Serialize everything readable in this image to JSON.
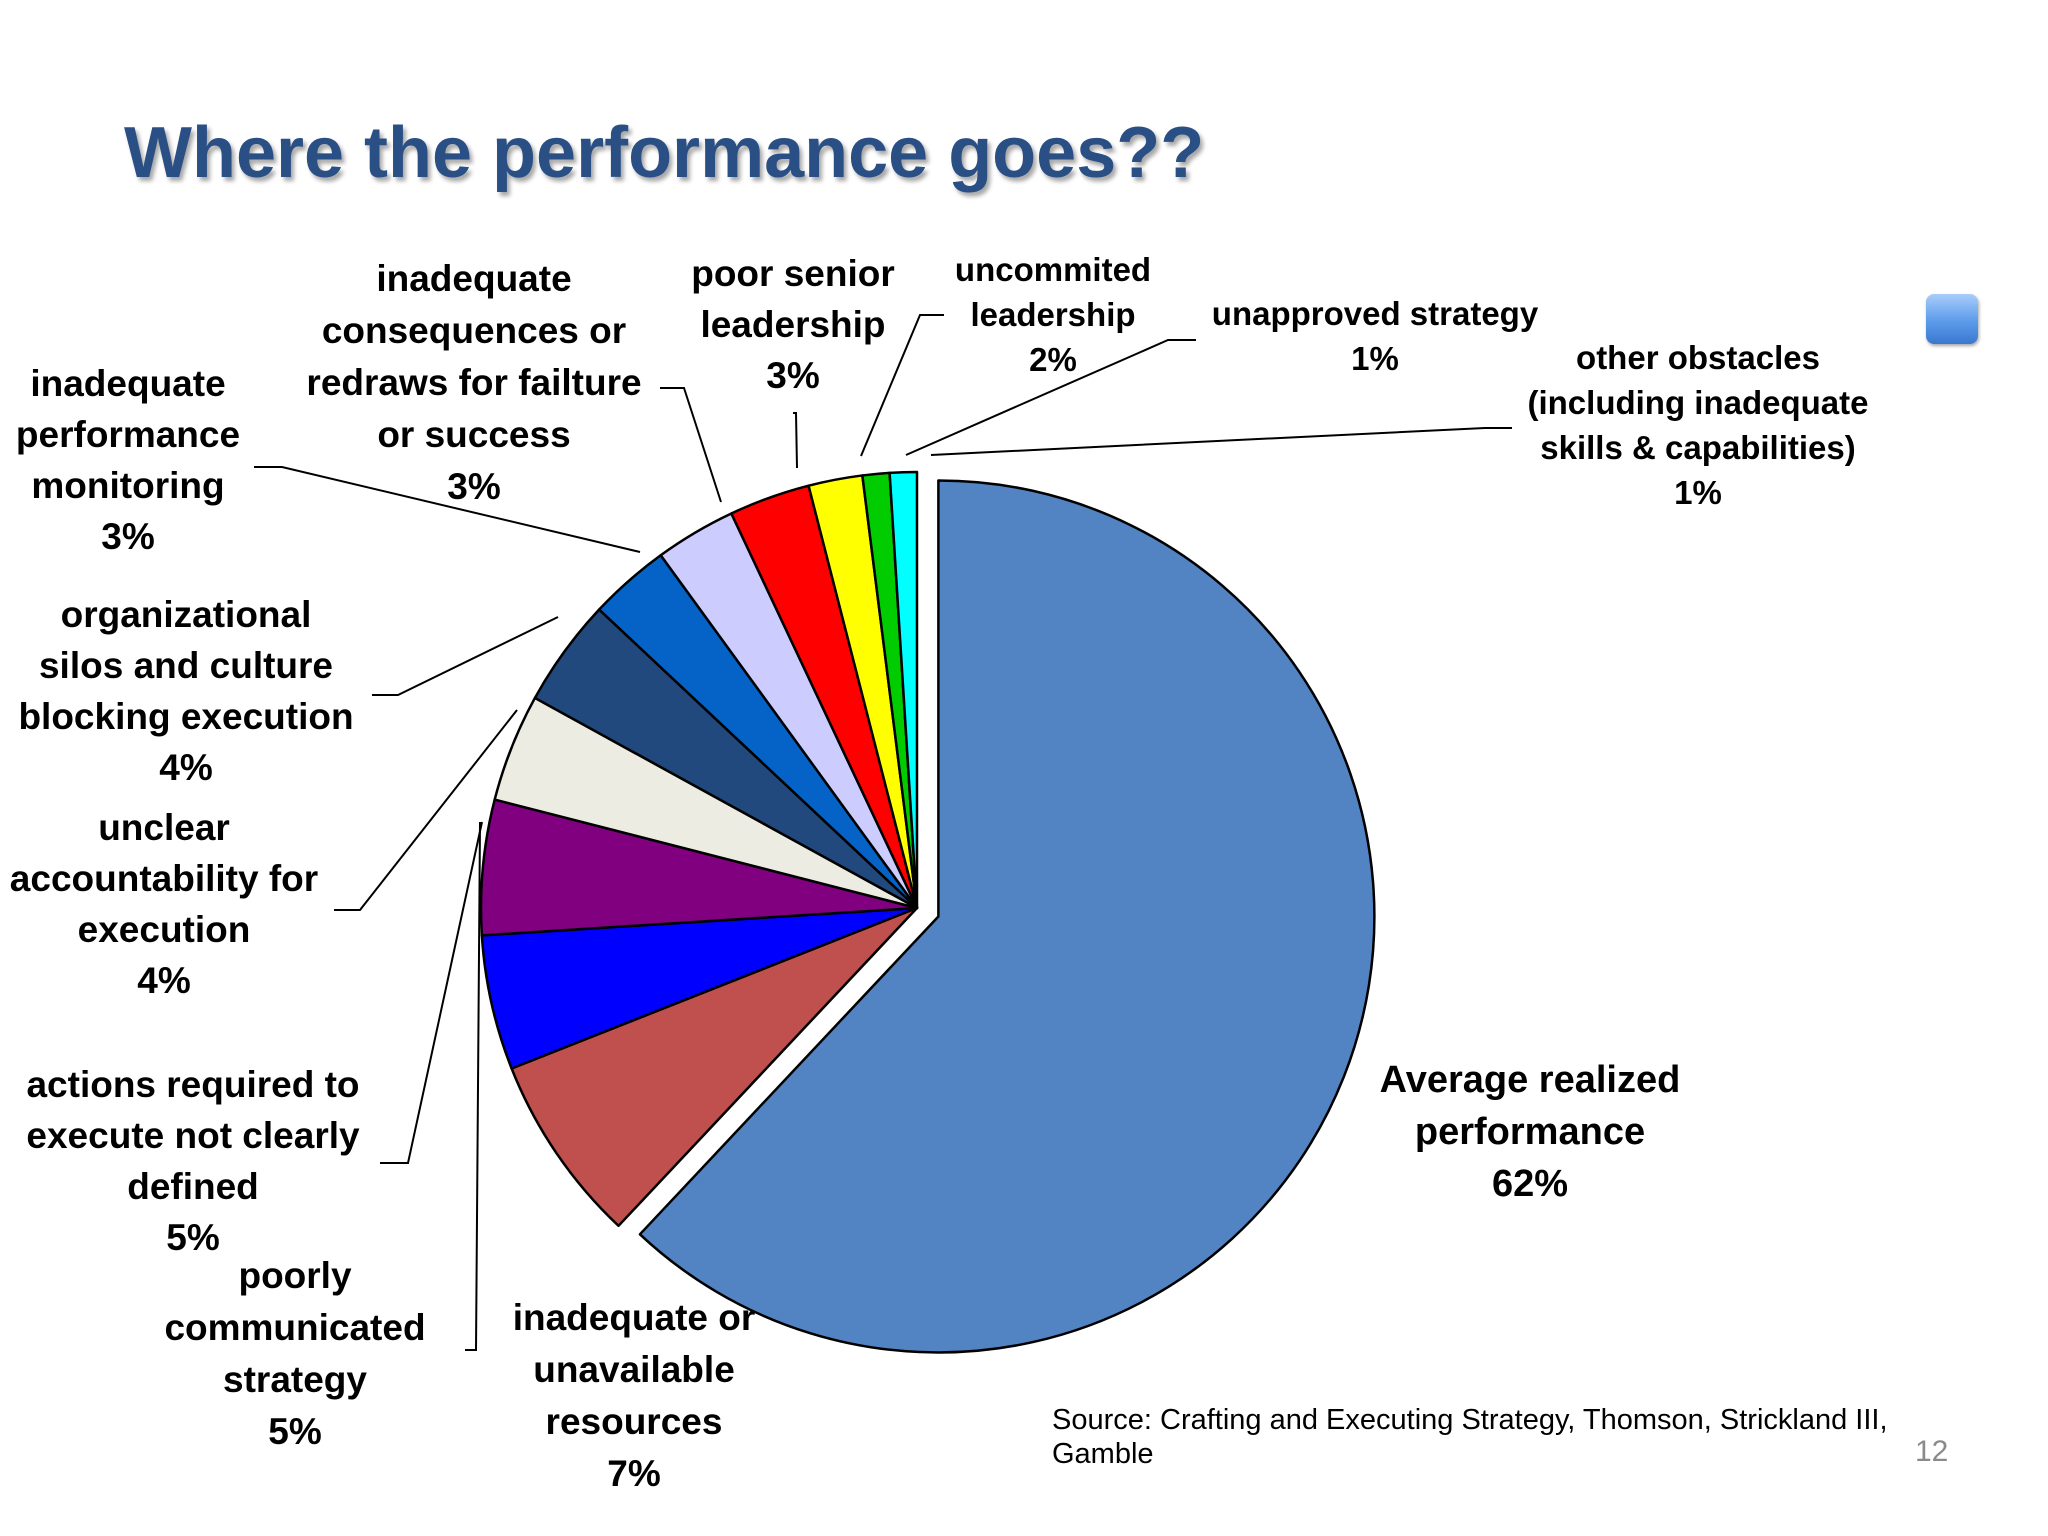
{
  "slide": {
    "title": "Where the performance goes??",
    "source": "Source: Crafting and Executing Strategy, Thomson, Strickland III, Gamble",
    "page_number": "12",
    "corner_icon": "blue-square-icon"
  },
  "chart_data": {
    "type": "pie",
    "title": "",
    "start": "top, clockwise",
    "exploded": [
      "Average realized performance"
    ],
    "slices": [
      {
        "label_lines": [
          "Average realized",
          "performance"
        ],
        "value_label": "62%",
        "value": 62,
        "color": "#5283c2"
      },
      {
        "label_lines": [
          "inadequate or",
          "unavailable",
          "resources"
        ],
        "value_label": "7%",
        "value": 7,
        "color": "#c0504d"
      },
      {
        "label_lines": [
          "poorly",
          "communicated",
          "strategy"
        ],
        "value_label": "5%",
        "value": 5,
        "color": "#0000ff"
      },
      {
        "label_lines": [
          "actions required to",
          "execute not clearly",
          "defined"
        ],
        "value_label": "5%",
        "value": 5,
        "color": "#800080"
      },
      {
        "label_lines": [
          "unclear",
          "accountability for",
          "execution"
        ],
        "value_label": "4%",
        "value": 4,
        "color": "#ececE3"
      },
      {
        "label_lines": [
          "organizational",
          "silos and culture",
          "blocking execution"
        ],
        "value_label": "4%",
        "value": 4,
        "color": "#21497d"
      },
      {
        "label_lines": [
          "inadequate",
          "performance",
          "monitoring"
        ],
        "value_label": "3%",
        "value": 3,
        "color": "#0563c8"
      },
      {
        "label_lines": [
          "inadequate",
          "consequences or",
          "redraws for failture",
          "or success"
        ],
        "value_label": "3%",
        "value": 3,
        "color": "#ccccff"
      },
      {
        "label_lines": [
          "poor senior",
          "leadership"
        ],
        "value_label": "3%",
        "value": 3,
        "color": "#ff0000"
      },
      {
        "label_lines": [
          "uncommited",
          "leadership"
        ],
        "value_label": "2%",
        "value": 2,
        "color": "#ffff00"
      },
      {
        "label_lines": [
          "unapproved strategy"
        ],
        "value_label": "1%",
        "value": 1,
        "color": "#00cc00"
      },
      {
        "label_lines": [
          "other obstacles",
          "(including inadequate",
          "skills & capabilities)"
        ],
        "value_label": "1%",
        "value": 1,
        "color": "#00ffff"
      }
    ]
  }
}
